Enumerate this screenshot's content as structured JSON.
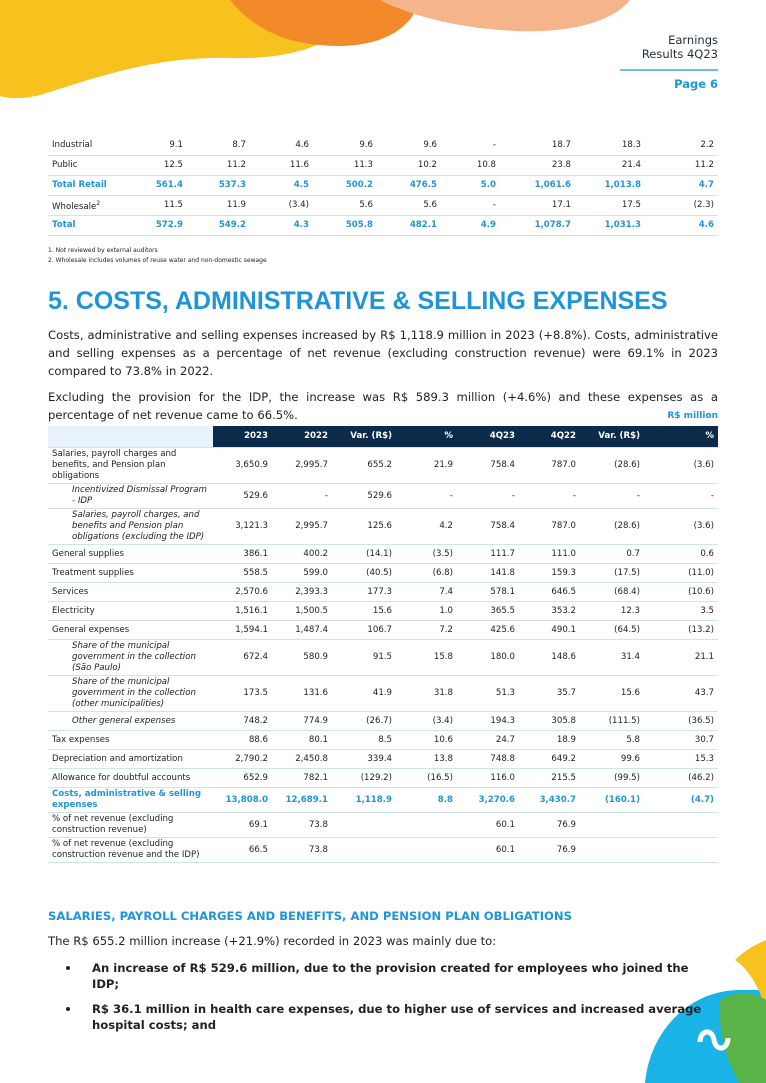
{
  "header": {
    "title_line1": "Earnings",
    "title_line2": "Results 4Q23",
    "page": "Page 6"
  },
  "table1": {
    "rows": [
      {
        "label": "Industrial",
        "values": [
          "9.1",
          "8.7",
          "4.6",
          "9.6",
          "9.6",
          "-",
          "18.7",
          "18.3",
          "2.2"
        ]
      },
      {
        "label": "Public",
        "values": [
          "12.5",
          "11.2",
          "11.6",
          "11.3",
          "10.2",
          "10.8",
          "23.8",
          "21.4",
          "11.2"
        ]
      },
      {
        "label": "Total Retail",
        "total": true,
        "values": [
          "561.4",
          "537.3",
          "4.5",
          "500.2",
          "476.5",
          "5.0",
          "1,061.6",
          "1,013.8",
          "4.7"
        ]
      },
      {
        "label": "Wholesale",
        "note": "2",
        "values": [
          "11.5",
          "11.9",
          "(3.4)",
          "5.6",
          "5.6",
          "-",
          "17.1",
          "17.5",
          "(2.3)"
        ]
      },
      {
        "label": "Total",
        "total": true,
        "values": [
          "572.9",
          "549.2",
          "4.3",
          "505.8",
          "482.1",
          "4.9",
          "1,078.7",
          "1,031.3",
          "4.6"
        ]
      }
    ]
  },
  "footnotes": [
    "1. Not reviewed by external auditors",
    "2. Wholesale includes volumes of reuse water and non-domestic sewage"
  ],
  "section": {
    "heading": "5. COSTS, ADMINISTRATIVE & SELLING EXPENSES",
    "paragraphs": [
      "Costs, administrative and selling expenses increased by R$ 1,118.9 million in 2023 (+8.8%). Costs, administrative and selling expenses as a percentage of net revenue (excluding construction revenue) were 69.1% in 2023 compared to 73.8% in 2022.",
      "Excluding the provision for the IDP, the increase was R$ 589.3 million (+4.6%) and these expenses as a percentage of net revenue came to 66.5%."
    ],
    "unit": "R$ million"
  },
  "table2": {
    "columns": [
      "2023",
      "2022",
      "Var. (R$)",
      "%",
      "4Q23",
      "4Q22",
      "Var. (R$)",
      "%"
    ],
    "rows": [
      {
        "label": "Salaries, payroll charges and benefits, and Pension plan obligations",
        "values": [
          "3,650.9",
          "2,995.7",
          "655.2",
          "21.9",
          "758.4",
          "787.0",
          "(28.6)",
          "(3.6)"
        ]
      },
      {
        "label": "Incentivized Dismissal Program - IDP",
        "sub": true,
        "values": [
          "529.6",
          "-",
          "529.6",
          "-",
          "-",
          "-",
          "-",
          "-"
        ]
      },
      {
        "label": "Salaries, payroll charges, and benefits and Pension plan obligations (excluding the IDP)",
        "sub": true,
        "values": [
          "3,121.3",
          "2,995.7",
          "125.6",
          "4.2",
          "758.4",
          "787.0",
          "(28.6)",
          "(3.6)"
        ]
      },
      {
        "label": "General supplies",
        "values": [
          "386.1",
          "400.2",
          "(14.1)",
          "(3.5)",
          "111.7",
          "111.0",
          "0.7",
          "0.6"
        ]
      },
      {
        "label": "Treatment supplies",
        "values": [
          "558.5",
          "599.0",
          "(40.5)",
          "(6.8)",
          "141.8",
          "159.3",
          "(17.5)",
          "(11.0)"
        ]
      },
      {
        "label": "Services",
        "values": [
          "2,570.6",
          "2,393.3",
          "177.3",
          "7.4",
          "578.1",
          "646.5",
          "(68.4)",
          "(10.6)"
        ]
      },
      {
        "label": "Electricity",
        "values": [
          "1,516.1",
          "1,500.5",
          "15.6",
          "1.0",
          "365.5",
          "353.2",
          "12.3",
          "3.5"
        ]
      },
      {
        "label": "General expenses",
        "values": [
          "1,594.1",
          "1,487.4",
          "106.7",
          "7.2",
          "425.6",
          "490.1",
          "(64.5)",
          "(13.2)"
        ]
      },
      {
        "label": "Share of the municipal government in the collection (São Paulo)",
        "sub": true,
        "values": [
          "672.4",
          "580.9",
          "91.5",
          "15.8",
          "180.0",
          "148.6",
          "31.4",
          "21.1"
        ]
      },
      {
        "label": "Share of the municipal government in the collection (other municipalities)",
        "sub": true,
        "values": [
          "173.5",
          "131.6",
          "41.9",
          "31.8",
          "51.3",
          "35.7",
          "15.6",
          "43.7"
        ]
      },
      {
        "label": "Other general expenses",
        "sub": true,
        "values": [
          "748.2",
          "774.9",
          "(26.7)",
          "(3.4)",
          "194.3",
          "305.8",
          "(111.5)",
          "(36.5)"
        ]
      },
      {
        "label": "Tax expenses",
        "values": [
          "88.6",
          "80.1",
          "8.5",
          "10.6",
          "24.7",
          "18.9",
          "5.8",
          "30.7"
        ]
      },
      {
        "label": "Depreciation and amortization",
        "values": [
          "2,790.2",
          "2,450.8",
          "339.4",
          "13.8",
          "748.8",
          "649.2",
          "99.6",
          "15.3"
        ]
      },
      {
        "label": "Allowance for doubtful accounts",
        "values": [
          "652.9",
          "782.1",
          "(129.2)",
          "(16.5)",
          "116.0",
          "215.5",
          "(99.5)",
          "(46.2)"
        ]
      },
      {
        "label": "Costs, administrative & selling expenses",
        "total": true,
        "values": [
          "13,808.0",
          "12,689.1",
          "1,118.9",
          "8.8",
          "3,270.6",
          "3,430.7",
          "(160.1)",
          "(4.7)"
        ]
      },
      {
        "label": "% of net revenue (excluding construction revenue)",
        "values": [
          "69.1",
          "73.8",
          null,
          null,
          "60.1",
          "76.9",
          null,
          null
        ]
      },
      {
        "label": "% of net revenue (excluding construction revenue and the IDP)",
        "values": [
          "66.5",
          "73.8",
          null,
          null,
          "60.1",
          "76.9",
          null,
          null
        ]
      }
    ]
  },
  "subsection": {
    "heading": "SALARIES, PAYROLL CHARGES AND BENEFITS, AND PENSION PLAN OBLIGATIONS",
    "intro": "The R$ 655.2 million increase (+21.9%) recorded in 2023 was mainly due to:",
    "bullets": [
      "An increase of R$ 529.6 million, due to the provision created for employees who joined the IDP;",
      "R$ 36.1 million in health care expenses, due to higher use of services and increased average hospital costs; and"
    ]
  }
}
